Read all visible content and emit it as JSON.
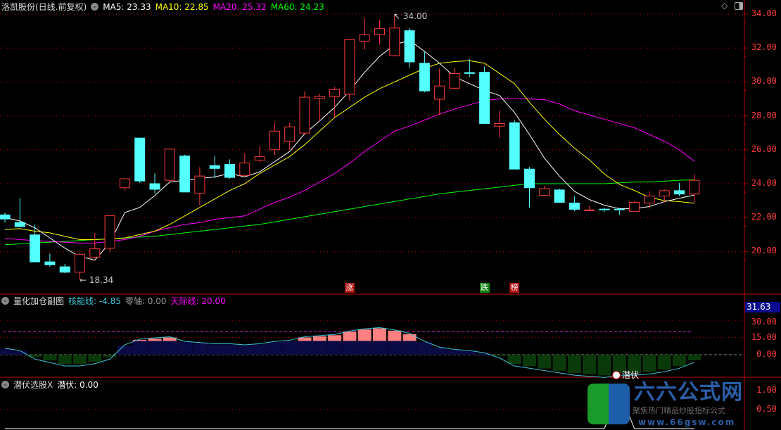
{
  "header": {
    "title": "洛凯股份(日线.前复权)",
    "ma": [
      {
        "label": "MA5: 23.33",
        "color": "#ffffff"
      },
      {
        "label": "MA10: 22.85",
        "color": "#ffff00"
      },
      {
        "label": "MA20: 25.32",
        "color": "#ff00ff"
      },
      {
        "label": "MA60: 24.23",
        "color": "#00ff00"
      }
    ]
  },
  "price_axis": [
    "34.00",
    "32.00",
    "30.00",
    "28.00",
    "26.00",
    "24.00",
    "22.00",
    "20.00"
  ],
  "annotations": {
    "high": "34.00",
    "low": "18.34"
  },
  "tags": [
    {
      "text": "涨",
      "bg": "#b01010"
    },
    {
      "text": "跌",
      "bg": "#108010"
    },
    {
      "text": "榜",
      "bg": "#b01010"
    }
  ],
  "indicator1": {
    "name": "量化加仓副图",
    "line1": "核能线: -4.85",
    "line2": "零轴: 0.00",
    "line3": "天际线: 20.00",
    "current_box": "31.63",
    "axis": [
      "30.00",
      "15.00",
      "0.00"
    ]
  },
  "indicator2": {
    "name": "潜伏选股X",
    "line1": "潜伏: 0.00",
    "signal_label": "潜伏",
    "axis": [
      "1.00",
      "0.50"
    ]
  },
  "watermark": {
    "brand": "六六公式网",
    "slogan": "聚焦热门精品炒股指标公式",
    "url": "www.66gsw.com"
  },
  "colors": {
    "up": "#ff3b3b",
    "down": "#54ffff",
    "grid": "#c00000",
    "bar_pos": "#0a0a45",
    "bar_neg": "#0a3a0a",
    "bar_top": "#ff8080"
  },
  "chart_data": {
    "type": "candlestick",
    "price_range": [
      18,
      35
    ],
    "candles": [
      [
        22.16,
        21.92,
        22.3,
        21.7
      ],
      [
        21.71,
        21.47,
        23.14,
        21.43
      ],
      [
        20.98,
        19.39,
        21.59,
        19.39
      ],
      [
        19.39,
        19.22,
        19.88,
        19.1
      ],
      [
        19.1,
        18.78,
        19.27,
        18.73
      ],
      [
        18.78,
        19.84,
        19.9,
        18.34
      ],
      [
        19.67,
        20.16,
        21.1,
        19.6
      ],
      [
        20.2,
        22.12,
        22.12,
        20.0
      ],
      [
        23.76,
        24.29,
        24.29,
        23.6
      ],
      [
        26.69,
        24.16,
        26.69,
        24.04
      ],
      [
        24.0,
        23.67,
        24.6,
        23.43
      ],
      [
        24.2,
        26.04,
        26.04,
        24.1
      ],
      [
        25.63,
        23.51,
        25.71,
        23.51
      ],
      [
        23.43,
        24.45,
        24.98,
        22.73
      ],
      [
        25.06,
        24.9,
        25.63,
        24.33
      ],
      [
        25.14,
        24.37,
        25.43,
        24.3
      ],
      [
        24.49,
        25.22,
        25.8,
        24.41
      ],
      [
        25.39,
        25.59,
        26.2,
        25.3
      ],
      [
        26.0,
        27.1,
        27.6,
        25.7
      ],
      [
        26.49,
        27.35,
        27.6,
        26.0
      ],
      [
        26.98,
        29.1,
        29.45,
        26.9
      ],
      [
        29.02,
        29.14,
        29.3,
        27.7
      ],
      [
        29.14,
        29.55,
        29.7,
        27.9
      ],
      [
        29.27,
        32.49,
        32.49,
        28.9
      ],
      [
        32.4,
        32.78,
        33.76,
        31.9
      ],
      [
        32.78,
        33.14,
        33.67,
        32.2
      ],
      [
        31.55,
        33.18,
        34.0,
        31.5
      ],
      [
        33.02,
        31.18,
        33.18,
        30.84
      ],
      [
        31.1,
        29.47,
        31.8,
        29.39
      ],
      [
        28.98,
        29.76,
        30.78,
        28.04
      ],
      [
        29.63,
        30.49,
        30.82,
        29.55
      ],
      [
        30.55,
        30.5,
        31.35,
        30.3
      ],
      [
        30.57,
        27.55,
        30.9,
        27.55
      ],
      [
        27.39,
        27.55,
        28.3,
        26.7
      ],
      [
        27.59,
        24.86,
        27.75,
        24.86
      ],
      [
        24.86,
        23.76,
        24.98,
        22.6
      ],
      [
        23.31,
        23.71,
        23.88,
        23.31
      ],
      [
        23.63,
        22.9,
        23.71,
        22.86
      ],
      [
        22.86,
        22.49,
        23.27,
        22.37
      ],
      [
        22.41,
        22.45,
        22.69,
        22.41
      ],
      [
        22.5,
        22.49,
        22.57,
        22.33
      ],
      [
        22.5,
        22.49,
        22.57,
        22.16
      ],
      [
        22.37,
        22.9,
        22.98,
        22.37
      ],
      [
        22.86,
        23.27,
        23.55,
        22.53
      ],
      [
        23.27,
        23.59,
        23.67,
        22.9
      ],
      [
        23.59,
        23.39,
        24.04,
        23.27
      ],
      [
        23.39,
        24.2,
        24.57,
        22.9
      ]
    ],
    "ma5": [
      22.0,
      21.8,
      21.4,
      20.8,
      20.2,
      19.7,
      19.5,
      20.5,
      22.3,
      22.6,
      23.3,
      24.1,
      24.2,
      24.3,
      24.4,
      24.6,
      24.4,
      24.7,
      25.3,
      25.9,
      26.94,
      27.7,
      28.5,
      29.47,
      30.57,
      31.5,
      32.2,
      32.45,
      31.8,
      31.1,
      30.3,
      29.9,
      29.5,
      29.2,
      28.2,
      26.9,
      25.5,
      24.45,
      23.55,
      23.06,
      22.73,
      22.53,
      22.53,
      22.65,
      22.94,
      23.14,
      23.33
    ],
    "ma10": [
      21.3,
      21.35,
      21.2,
      21.1,
      20.9,
      20.7,
      20.7,
      20.75,
      20.8,
      21.0,
      21.2,
      21.6,
      22.1,
      22.6,
      23.1,
      23.6,
      24.0,
      24.6,
      25.1,
      25.6,
      26.3,
      27.1,
      27.9,
      28.5,
      29.1,
      29.6,
      30.0,
      30.4,
      30.8,
      31.1,
      31.2,
      31.25,
      31.1,
      30.5,
      29.9,
      28.8,
      27.8,
      26.9,
      26.1,
      25.4,
      24.57,
      23.96,
      23.6,
      23.2,
      23.0,
      22.94,
      22.85
    ],
    "ma20": [
      20.78,
      20.7,
      20.65,
      20.6,
      20.55,
      20.5,
      20.5,
      20.6,
      20.7,
      20.9,
      21.2,
      21.4,
      21.6,
      21.7,
      21.9,
      22.0,
      22.1,
      22.5,
      22.9,
      23.2,
      23.6,
      24.1,
      24.6,
      25.2,
      25.9,
      26.5,
      27.1,
      27.4,
      27.75,
      28.1,
      28.4,
      28.65,
      28.9,
      29.0,
      29.0,
      29.0,
      28.95,
      28.7,
      28.3,
      28.05,
      27.8,
      27.55,
      27.3,
      26.9,
      26.5,
      26.0,
      25.32
    ],
    "ma60": [
      20.4,
      20.45,
      20.5,
      20.55,
      20.6,
      20.65,
      20.7,
      20.75,
      20.8,
      20.85,
      20.9,
      21.0,
      21.1,
      21.2,
      21.3,
      21.4,
      21.5,
      21.6,
      21.75,
      21.9,
      22.05,
      22.2,
      22.35,
      22.5,
      22.65,
      22.8,
      22.95,
      23.1,
      23.25,
      23.4,
      23.5,
      23.6,
      23.7,
      23.8,
      23.9,
      24.0,
      24.0,
      24.0,
      24.0,
      24.0,
      24.0,
      24.05,
      24.1,
      24.1,
      24.15,
      24.2,
      24.23
    ],
    "tag_index": [
      23,
      32,
      34
    ],
    "indicator1_values": [
      5,
      3,
      -2,
      -5,
      -8,
      -8,
      -6,
      -2,
      8,
      13,
      14,
      15,
      11,
      10,
      9,
      9,
      8,
      9,
      11,
      12,
      15,
      16,
      17,
      20,
      22,
      23,
      21,
      18,
      11,
      6,
      4,
      3,
      1,
      -1,
      -8,
      -10,
      -12,
      -14,
      -16,
      -17,
      -18,
      -16,
      -16,
      -15,
      -13,
      -10,
      -4.85
    ],
    "indicator1_range": [
      -20,
      31.63
    ],
    "skyline": 20,
    "indicator2_signal_index": 41,
    "indicator2_range": [
      0,
      1
    ]
  }
}
